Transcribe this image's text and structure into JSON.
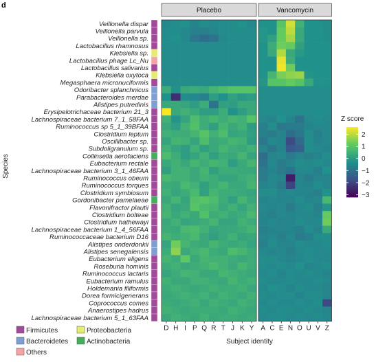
{
  "panel_letter": "d",
  "colors": {
    "Firmicutes": "#a24a9a",
    "Bacteroidetes": "#7f9fd3",
    "Proteobacteria": "#e6ec72",
    "Actinobacteria": "#45ad5b",
    "Others": "#f3a3a5",
    "strip_fill": "#d9d9d9",
    "viridis": [
      "#440154",
      "#3b528b",
      "#21918c",
      "#5ec962",
      "#fde725"
    ]
  },
  "chart_data": {
    "type": "heatmap",
    "ylabel": "Species",
    "xlabel": "Subject identity",
    "colorbar": {
      "title": "Z score",
      "ticks": [
        2,
        1,
        0,
        -1,
        -2,
        -3
      ],
      "tick_labels": [
        "2",
        "1",
        "0",
        "−1",
        "−2",
        "−3"
      ],
      "range": [
        -3.2,
        2.6
      ]
    },
    "panels": [
      {
        "name": "Placebo",
        "subjects": [
          "D",
          "H",
          "I",
          "P",
          "Q",
          "R",
          "T",
          "J",
          "K",
          "Y"
        ]
      },
      {
        "name": "Vancomycin",
        "subjects": [
          "A",
          "C",
          "E",
          "N",
          "O",
          "U",
          "V",
          "Z"
        ]
      }
    ],
    "legend": {
      "title": "",
      "entries": [
        {
          "label": "Firmicutes",
          "color_key": "Firmicutes"
        },
        {
          "label": "Proteobacteria",
          "color_key": "Proteobacteria"
        },
        {
          "label": "Bacteroidetes",
          "color_key": "Bacteroidetes"
        },
        {
          "label": "Actinobacteria",
          "color_key": "Actinobacteria"
        },
        {
          "label": "Others",
          "color_key": "Others"
        }
      ]
    },
    "species": [
      {
        "name": "Veillonella dispar",
        "phylum": "Firmicutes",
        "placebo": [
          -0.5,
          -0.4,
          -0.3,
          -0.6,
          -0.4,
          -0.5,
          -0.4,
          -0.4,
          -0.3,
          -0.5
        ],
        "vancomycin": [
          -0.3,
          -0.3,
          1.0,
          2.2,
          0.5,
          -0.3,
          -0.3,
          -0.4
        ]
      },
      {
        "name": "Veillonella parvula",
        "phylum": "Firmicutes",
        "placebo": [
          -0.4,
          -0.4,
          -0.5,
          -0.7,
          -0.7,
          -0.6,
          -0.4,
          -0.4,
          -0.4,
          -0.4
        ],
        "vancomycin": [
          -0.2,
          -0.3,
          1.2,
          2.0,
          0.3,
          -0.3,
          -0.3,
          -0.4
        ]
      },
      {
        "name": "Veillonella sp.",
        "phylum": "Firmicutes",
        "placebo": [
          -0.4,
          -0.3,
          -0.5,
          -0.9,
          -1.1,
          -1.0,
          -0.5,
          -0.4,
          -0.4,
          -0.4
        ],
        "vancomycin": [
          -0.2,
          0.1,
          1.2,
          1.8,
          0.3,
          -0.3,
          -0.3,
          -0.4
        ]
      },
      {
        "name": "Lactobacillus rhamnosus",
        "phylum": "Firmicutes",
        "placebo": [
          -0.4,
          -0.4,
          -0.4,
          -0.4,
          -0.4,
          -0.4,
          -0.4,
          -0.4,
          -0.4,
          -0.4
        ],
        "vancomycin": [
          -0.3,
          0.4,
          1.3,
          1.2,
          0.1,
          -0.3,
          -0.3,
          -0.3
        ]
      },
      {
        "name": "Klebsiella sp.",
        "phylum": "Proteobacteria",
        "placebo": [
          -0.4,
          -0.4,
          -0.4,
          -0.4,
          -0.4,
          -0.4,
          -0.4,
          -0.4,
          -0.4,
          -0.4
        ],
        "vancomycin": [
          -0.3,
          0.3,
          1.9,
          0.3,
          -0.1,
          -0.3,
          -0.3,
          -0.3
        ]
      },
      {
        "name": "Lactobacillus phage Lc_Nu",
        "phylum": "Others",
        "placebo": [
          -0.4,
          -0.4,
          -0.4,
          -0.4,
          -0.4,
          -0.4,
          -0.4,
          -0.4,
          -0.4,
          -0.4
        ],
        "vancomycin": [
          -0.3,
          -0.3,
          2.4,
          0.4,
          -0.3,
          -0.3,
          -0.3,
          -0.3
        ]
      },
      {
        "name": "Lactobacillus salivarius",
        "phylum": "Firmicutes",
        "placebo": [
          -0.4,
          -0.4,
          -0.4,
          -0.4,
          -0.4,
          -0.4,
          -0.4,
          -0.4,
          -0.4,
          -0.4
        ],
        "vancomycin": [
          -0.3,
          -0.3,
          2.5,
          1.3,
          -0.3,
          -0.3,
          -0.3,
          -0.3
        ]
      },
      {
        "name": "Klebsiella oxytoca",
        "phylum": "Proteobacteria",
        "placebo": [
          -0.4,
          -0.4,
          -0.4,
          -0.4,
          -0.4,
          -0.4,
          -0.4,
          -0.4,
          -0.4,
          -0.4
        ],
        "vancomycin": [
          -0.3,
          0.6,
          1.4,
          1.6,
          1.7,
          -0.2,
          -0.3,
          -0.3
        ]
      },
      {
        "name": "Megasphaera micronuciformis",
        "phylum": "Firmicutes",
        "placebo": [
          -0.4,
          -0.4,
          -0.4,
          -0.4,
          -0.4,
          -0.4,
          -0.4,
          -0.4,
          -0.4,
          -0.4
        ],
        "vancomycin": [
          -0.2,
          1.0,
          1.0,
          1.2,
          1.0,
          0.3,
          -0.3,
          -0.3
        ]
      },
      {
        "name": "Odoribacter splanchnicus",
        "phylum": "Bacteroidetes",
        "placebo": [
          0.4,
          -0.3,
          0.3,
          0.4,
          0.3,
          0.6,
          0.8,
          1.0,
          1.0,
          1.0
        ],
        "vancomycin": [
          -0.4,
          -0.4,
          -0.4,
          -0.4,
          -0.4,
          -0.4,
          -0.4,
          -0.4
        ]
      },
      {
        "name": "Parabacteroides merdae",
        "phylum": "Bacteroidetes",
        "placebo": [
          -0.3,
          -2.4,
          -0.4,
          -0.5,
          -0.7,
          0.0,
          -0.3,
          0.1,
          -0.1,
          0.0
        ],
        "vancomycin": [
          -0.4,
          -0.4,
          -0.4,
          -0.4,
          -0.4,
          -0.4,
          -0.4,
          -0.4
        ]
      },
      {
        "name": "Alistipes putredinis",
        "phylum": "Bacteroidetes",
        "placebo": [
          0.3,
          0.3,
          0.2,
          0.0,
          0.4,
          -1.0,
          0.1,
          0.0,
          0.3,
          0.3
        ],
        "vancomycin": [
          -0.4,
          -0.4,
          -0.4,
          -0.4,
          -0.4,
          -0.4,
          -0.4,
          -0.4
        ]
      },
      {
        "name": "Erysipelotrichaceae bacterium 21_3",
        "phylum": "Firmicutes",
        "placebo": [
          2.6,
          0.3,
          0.5,
          0.3,
          0.0,
          0.0,
          0.4,
          -0.3,
          0.0,
          0.3
        ],
        "vancomycin": [
          -0.4,
          -0.4,
          -0.4,
          -0.4,
          -0.4,
          -0.4,
          -0.4,
          -0.4
        ]
      },
      {
        "name": "Lachnospiraceae bacterium 7_1_58FAA",
        "phylum": "Firmicutes",
        "placebo": [
          0.5,
          -0.2,
          0.2,
          0.8,
          0.4,
          0.6,
          0.4,
          0.6,
          0.5,
          1.0
        ],
        "vancomycin": [
          -0.5,
          -0.6,
          -0.3,
          -0.6,
          -1.0,
          -0.5,
          -0.4,
          -0.5
        ]
      },
      {
        "name": "Ruminococcus sp 5_1_39BFAA",
        "phylum": "Firmicutes",
        "placebo": [
          0.3,
          0.0,
          0.5,
          0.9,
          0.4,
          0.1,
          0.6,
          0.3,
          0.5,
          0.0
        ],
        "vancomycin": [
          -0.7,
          -0.4,
          -0.9,
          -0.8,
          -0.8,
          -0.6,
          -0.5,
          -0.5
        ]
      },
      {
        "name": "Clostridium leptum",
        "phylum": "Firmicutes",
        "placebo": [
          0.5,
          0.4,
          0.4,
          0.6,
          1.0,
          0.5,
          0.8,
          0.2,
          0.3,
          0.1
        ],
        "vancomycin": [
          -0.7,
          -0.8,
          -0.6,
          -1.1,
          -0.9,
          -0.4,
          -0.7,
          -0.5
        ]
      },
      {
        "name": "Oscillibacter sp.",
        "phylum": "Firmicutes",
        "placebo": [
          0.2,
          0.6,
          0.5,
          0.2,
          0.8,
          0.3,
          0.4,
          0.6,
          0.5,
          0.0
        ],
        "vancomycin": [
          -0.9,
          -0.5,
          -0.6,
          -1.9,
          -1.2,
          -0.4,
          -0.6,
          -0.5
        ]
      },
      {
        "name": "Subdoligranulum sp.",
        "phylum": "Firmicutes",
        "placebo": [
          0.5,
          0.2,
          0.0,
          0.5,
          0.1,
          0.3,
          0.6,
          0.4,
          0.3,
          0.5
        ],
        "vancomycin": [
          -0.6,
          -0.9,
          -0.6,
          -1.6,
          -1.4,
          -0.4,
          -0.5,
          -0.6
        ]
      },
      {
        "name": "Collinsella aerofaciens",
        "phylum": "Actinobacteria",
        "placebo": [
          0.8,
          0.4,
          0.0,
          0.2,
          0.5,
          0.1,
          0.4,
          0.3,
          0.6,
          0.2
        ],
        "vancomycin": [
          -1.1,
          -0.6,
          -0.5,
          -0.8,
          -0.6,
          -0.7,
          -0.6,
          -0.4
        ]
      },
      {
        "name": "Eubacterium rectale",
        "phylum": "Firmicutes",
        "placebo": [
          0.3,
          0.5,
          0.3,
          0.6,
          0.4,
          0.6,
          0.5,
          0.0,
          0.3,
          0.6
        ],
        "vancomycin": [
          -1.0,
          -0.5,
          -0.8,
          -0.6,
          -0.4,
          -0.5,
          -0.4,
          -0.5
        ]
      },
      {
        "name": "Lachnospiraceae bacterium 3_1_46FAA",
        "phylum": "Firmicutes",
        "placebo": [
          0.1,
          0.5,
          0.5,
          0.3,
          0.6,
          0.1,
          0.4,
          0.4,
          0.3,
          0.3
        ],
        "vancomycin": [
          -0.8,
          -0.6,
          -0.8,
          -1.0,
          -0.5,
          -0.5,
          -0.7,
          -0.3
        ]
      },
      {
        "name": "Ruminococcus obeum",
        "phylum": "Firmicutes",
        "placebo": [
          0.7,
          0.5,
          0.5,
          0.3,
          0.5,
          0.4,
          0.2,
          0.2,
          0.4,
          0.5
        ],
        "vancomycin": [
          -0.8,
          -0.5,
          -0.6,
          -2.7,
          -0.6,
          -0.8,
          -0.6,
          -0.6
        ]
      },
      {
        "name": "Ruminococcus torques",
        "phylum": "Firmicutes",
        "placebo": [
          0.4,
          0.3,
          0.7,
          0.5,
          0.1,
          0.4,
          0.6,
          0.3,
          0.3,
          0.6
        ],
        "vancomycin": [
          -0.6,
          -0.5,
          -0.8,
          -2.0,
          -0.6,
          -0.6,
          -0.4,
          -0.6
        ]
      },
      {
        "name": "Clostridium symbiosum",
        "phylum": "Firmicutes",
        "placebo": [
          0.5,
          0.2,
          0.4,
          0.7,
          0.1,
          0.6,
          0.4,
          0.4,
          0.3,
          0.2
        ],
        "vancomycin": [
          -0.4,
          -0.4,
          -0.6,
          -0.5,
          -0.6,
          -0.6,
          -0.7,
          -0.3
        ]
      },
      {
        "name": "Gordonibacter pamelaeae",
        "phylum": "Actinobacteria",
        "placebo": [
          0.3,
          0.6,
          0.2,
          0.9,
          1.0,
          0.8,
          0.4,
          0.1,
          0.6,
          0.3
        ],
        "vancomycin": [
          -0.6,
          -0.5,
          -0.6,
          -0.6,
          -0.4,
          -0.6,
          -0.5,
          0.7
        ]
      },
      {
        "name": "Flavonifractor plautii",
        "phylum": "Firmicutes",
        "placebo": [
          0.5,
          0.2,
          0.3,
          1.0,
          0.7,
          0.6,
          0.3,
          0.5,
          0.2,
          0.5
        ],
        "vancomycin": [
          -0.5,
          -0.6,
          -0.5,
          -0.8,
          -0.5,
          -0.4,
          -0.7,
          -0.2
        ]
      },
      {
        "name": "Clostridium bolteae",
        "phylum": "Firmicutes",
        "placebo": [
          0.6,
          0.3,
          0.5,
          0.3,
          0.9,
          0.4,
          0.5,
          0.3,
          0.4,
          0.7
        ],
        "vancomycin": [
          -0.6,
          -0.7,
          -0.5,
          -0.6,
          -0.5,
          -0.5,
          -0.6,
          1.2
        ]
      },
      {
        "name": "Clostridium hathewayi",
        "phylum": "Firmicutes",
        "placebo": [
          0.3,
          0.5,
          0.2,
          0.3,
          0.4,
          0.6,
          0.2,
          0.2,
          0.5,
          0.4
        ],
        "vancomycin": [
          -0.6,
          -0.5,
          -0.6,
          -0.6,
          -0.4,
          -0.5,
          -0.5,
          1.3
        ]
      },
      {
        "name": "Lachnospiraceae bacterium 1_4_56FAA",
        "phylum": "Firmicutes",
        "placebo": [
          0.4,
          0.3,
          0.7,
          0.8,
          0.5,
          0.2,
          0.3,
          0.3,
          0.4,
          0.6
        ],
        "vancomycin": [
          -0.7,
          -0.6,
          -0.6,
          -0.6,
          -0.7,
          -0.4,
          -0.6,
          0.3
        ]
      },
      {
        "name": "Ruminococcaceae bacterium D16",
        "phylum": "Firmicutes",
        "placebo": [
          0.6,
          0.4,
          0.5,
          0.7,
          0.3,
          0.1,
          0.3,
          0.5,
          0.2,
          0.3
        ],
        "vancomycin": [
          -0.6,
          -0.5,
          -0.7,
          -0.5,
          -0.8,
          -0.7,
          -0.4,
          -0.4
        ]
      },
      {
        "name": "Alistipes onderdonkii",
        "phylum": "Bacteroidetes",
        "placebo": [
          0.2,
          1.3,
          0.6,
          0.4,
          0.3,
          0.6,
          0.4,
          0.3,
          0.4,
          0.2
        ],
        "vancomycin": [
          -0.7,
          -0.4,
          -0.6,
          -0.6,
          -0.4,
          -0.5,
          -0.5,
          -0.4
        ]
      },
      {
        "name": "Alistipes senegalensis",
        "phylum": "Bacteroidetes",
        "placebo": [
          0.4,
          1.6,
          0.3,
          0.5,
          0.7,
          0.4,
          0.3,
          0.8,
          0.6,
          0.4
        ],
        "vancomycin": [
          -0.5,
          -0.6,
          -0.5,
          -0.7,
          -0.5,
          -0.4,
          -0.5,
          -0.5
        ]
      },
      {
        "name": "Eubacterium eligens",
        "phylum": "Firmicutes",
        "placebo": [
          0.6,
          0.4,
          1.1,
          0.3,
          0.6,
          0.5,
          0.5,
          0.4,
          0.3,
          0.4
        ],
        "vancomycin": [
          -0.4,
          -0.4,
          -0.5,
          -0.6,
          -0.5,
          -0.4,
          -0.5,
          -0.5
        ]
      },
      {
        "name": "Roseburia hominis",
        "phylum": "Firmicutes",
        "placebo": [
          0.4,
          0.5,
          0.3,
          0.4,
          0.5,
          0.7,
          0.5,
          0.3,
          0.6,
          0.4
        ],
        "vancomycin": [
          -0.4,
          -0.5,
          -0.4,
          -0.5,
          -0.3,
          -0.6,
          -0.5,
          -0.4
        ]
      },
      {
        "name": "Ruminococcus lactaris",
        "phylum": "Firmicutes",
        "placebo": [
          0.2,
          0.4,
          0.6,
          0.5,
          0.3,
          0.3,
          0.6,
          0.5,
          0.4,
          0.3
        ],
        "vancomycin": [
          -0.5,
          -0.4,
          -0.6,
          -0.4,
          -0.5,
          -0.4,
          -0.5,
          -0.6
        ]
      },
      {
        "name": "Eubacterium ramulus",
        "phylum": "Firmicutes",
        "placebo": [
          0.5,
          0.3,
          0.3,
          0.5,
          0.5,
          0.4,
          0.3,
          0.6,
          0.4,
          0.5
        ],
        "vancomycin": [
          -0.4,
          -0.5,
          -0.5,
          -0.4,
          -0.5,
          -0.5,
          -0.4,
          -0.5
        ]
      },
      {
        "name": "Holdemania filiformis",
        "phylum": "Firmicutes",
        "placebo": [
          0.4,
          0.5,
          0.4,
          0.3,
          0.4,
          0.5,
          0.4,
          0.4,
          0.5,
          0.3
        ],
        "vancomycin": [
          -0.5,
          -0.3,
          -0.4,
          -0.6,
          -0.4,
          -0.5,
          -0.5,
          -0.6
        ]
      },
      {
        "name": "Dorea formicigenerans",
        "phylum": "Firmicutes",
        "placebo": [
          0.3,
          0.4,
          0.5,
          0.4,
          0.5,
          0.3,
          0.5,
          0.4,
          0.3,
          0.5
        ],
        "vancomycin": [
          -0.4,
          -0.5,
          -0.4,
          -0.4,
          -0.6,
          -0.4,
          -0.4,
          -0.6
        ]
      },
      {
        "name": "Coprococcus comes",
        "phylum": "Firmicutes",
        "placebo": [
          0.4,
          0.3,
          0.4,
          0.5,
          0.3,
          0.5,
          0.4,
          0.3,
          0.5,
          0.4
        ],
        "vancomycin": [
          -0.5,
          -0.4,
          -0.5,
          -0.5,
          -0.4,
          -0.5,
          -0.4,
          -1.9
        ]
      },
      {
        "name": "Anaerostipes hadrus",
        "phylum": "Firmicutes",
        "placebo": [
          0.5,
          0.4,
          0.3,
          0.4,
          0.4,
          0.4,
          0.3,
          0.5,
          0.4,
          0.3
        ],
        "vancomycin": [
          -0.4,
          -0.5,
          -0.4,
          -0.4,
          -0.5,
          -0.4,
          -0.5,
          -0.6
        ]
      },
      {
        "name": "Lachnospiraceae bacterium 5_1_63FAA",
        "phylum": "Firmicutes",
        "placebo": [
          0.3,
          0.5,
          0.4,
          0.3,
          0.5,
          0.3,
          0.4,
          0.4,
          0.3,
          0.4
        ],
        "vancomycin": [
          -0.5,
          -0.4,
          -0.4,
          -0.5,
          -0.4,
          -0.5,
          -0.4,
          -0.5
        ]
      }
    ]
  }
}
